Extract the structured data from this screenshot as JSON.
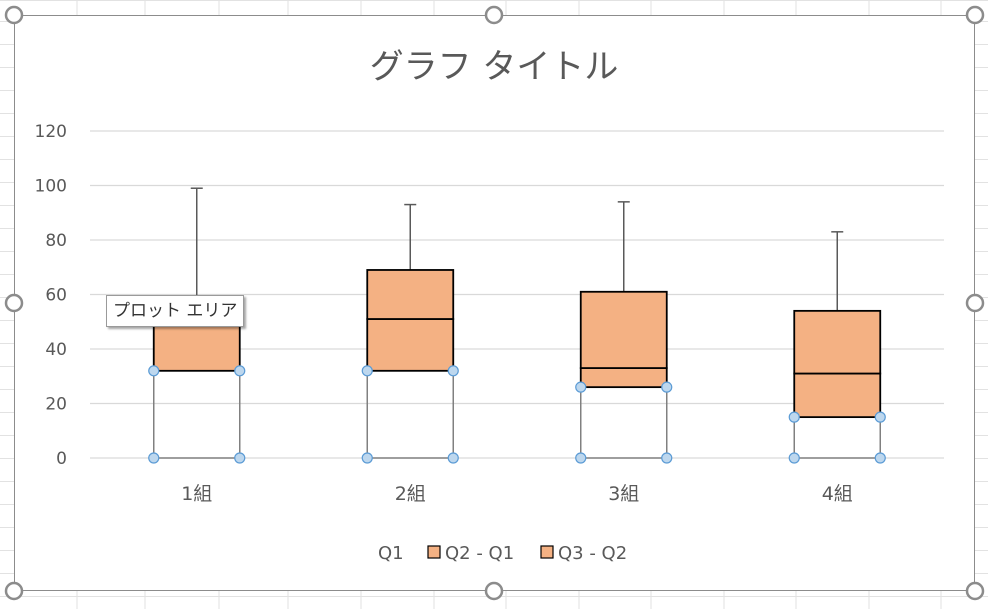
{
  "tooltip": "プロット エリア",
  "colors": {
    "box_fill": "#F4B183",
    "box_stroke": "#000000",
    "whisker": "#595959",
    "q1_stroke": "#808080",
    "handle_fill": "#BDD7EE",
    "handle_stroke": "#5B9BD5",
    "gridline": "#D9D9D9",
    "text": "#595959"
  },
  "chart_data": {
    "type": "bar",
    "stacked": true,
    "title": "グラフ タイトル",
    "categories": [
      "1組",
      "2組",
      "3組",
      "4組"
    ],
    "series": [
      {
        "name": "Q1",
        "values": [
          32,
          32,
          26,
          15
        ],
        "fill": "none",
        "border": "#808080"
      },
      {
        "name": "Q2 - Q1",
        "values": [
          18,
          19,
          7,
          16
        ],
        "fill": "#F4B183"
      },
      {
        "name": "Q3 - Q2",
        "values": [
          0,
          18,
          28,
          23
        ],
        "fill": "#F4B183"
      }
    ],
    "whisker_max": [
      99,
      93,
      94,
      83
    ],
    "y_ticks": [
      0,
      20,
      40,
      60,
      80,
      100,
      120
    ],
    "ylim": [
      0,
      120
    ],
    "grid": true,
    "legend": "bottom",
    "legend_items": [
      "Q1",
      "Q2 - Q1",
      "Q3 - Q2"
    ]
  }
}
